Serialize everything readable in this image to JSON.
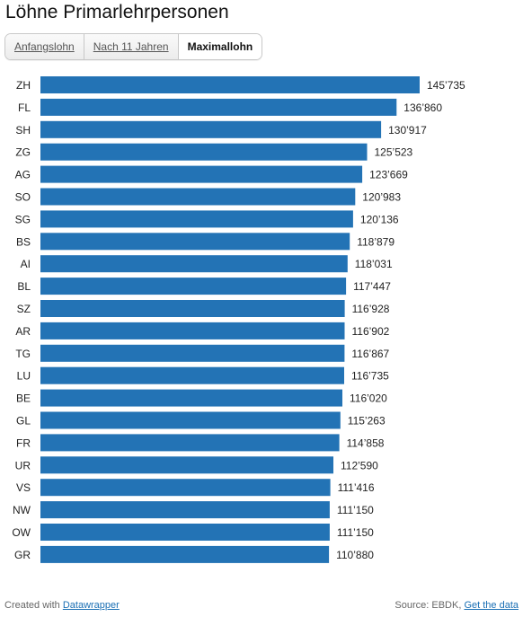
{
  "header": {
    "title": "Löhne Primarlehrpersonen"
  },
  "tabs": [
    {
      "label": "Anfangslohn",
      "active": false
    },
    {
      "label": "Nach 11 Jahren",
      "active": false
    },
    {
      "label": "Maximallohn",
      "active": true
    }
  ],
  "chart_data": {
    "type": "bar",
    "orientation": "horizontal",
    "bar_color": "#2373b5",
    "categories": [
      "ZH",
      "FL",
      "SH",
      "ZG",
      "AG",
      "SO",
      "SG",
      "BS",
      "AI",
      "BL",
      "SZ",
      "AR",
      "TG",
      "LU",
      "BE",
      "GL",
      "FR",
      "UR",
      "VS",
      "NW",
      "OW",
      "GR"
    ],
    "values": [
      145735,
      136860,
      130917,
      125523,
      123669,
      120983,
      120136,
      118879,
      118031,
      117447,
      116928,
      116902,
      116867,
      116735,
      116020,
      115263,
      114858,
      112590,
      111416,
      111150,
      111150,
      110880
    ],
    "value_labels": [
      "145’735",
      "136’860",
      "130’917",
      "125’523",
      "123’669",
      "120’983",
      "120’136",
      "118’879",
      "118’031",
      "117’447",
      "116’928",
      "116’902",
      "116’867",
      "116’735",
      "116’020",
      "115’263",
      "114’858",
      "112’590",
      "111’416",
      "111’150",
      "111’150",
      "110’880"
    ],
    "xlim": [
      0,
      145735
    ]
  },
  "footer": {
    "created_prefix": "Created with",
    "created_link": "Datawrapper",
    "source_prefix": "Source: EBDK,",
    "source_link": "Get the data"
  }
}
